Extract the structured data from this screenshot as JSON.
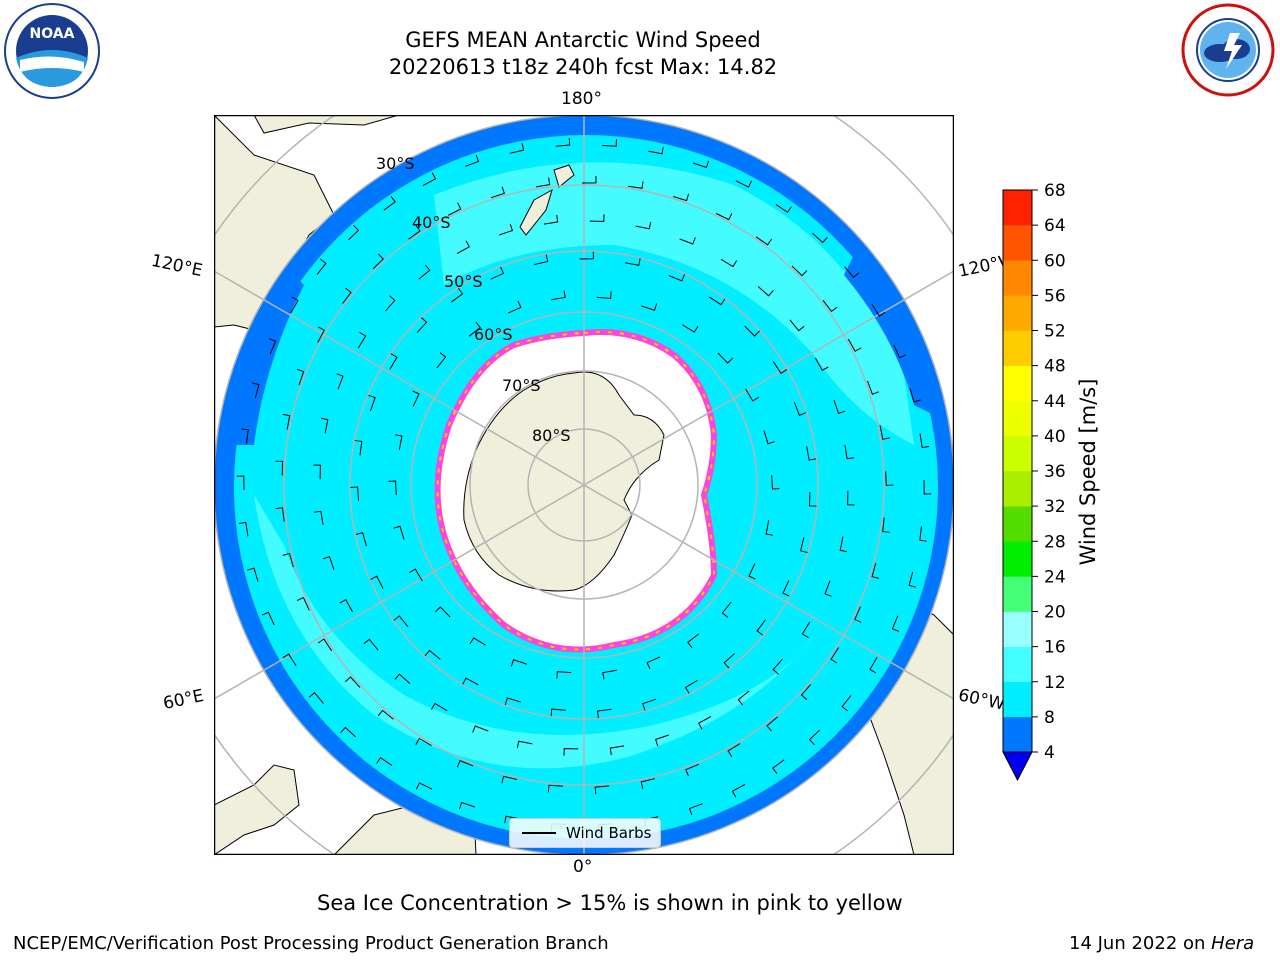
{
  "title": {
    "line1": "GEFS MEAN Antarctic Wind Speed",
    "line2": "20220613 t18z 240h fcst   Max: 14.82"
  },
  "map_labels": {
    "lon_top": "180°",
    "lon_bottom": "0°",
    "lon_upper_left": "120°E",
    "lon_upper_right": "120°W",
    "lon_lower_left": "60°E",
    "lon_lower_right": "60°W",
    "lat_30": "30°S",
    "lat_40": "40°S",
    "lat_50": "50°S",
    "lat_60": "60°S",
    "lat_70": "70°S",
    "lat_80": "80°S"
  },
  "legend": {
    "label": "Wind Barbs"
  },
  "colorbar": {
    "label": "Wind Speed [m/s]",
    "ticks": [
      "4",
      "8",
      "12",
      "16",
      "20",
      "24",
      "28",
      "32",
      "36",
      "40",
      "44",
      "48",
      "52",
      "56",
      "60",
      "64",
      "68"
    ],
    "colors": [
      "#0077ff",
      "#00eeff",
      "#44ffff",
      "#99ffff",
      "#44ff77",
      "#00ee00",
      "#55dd00",
      "#aaee00",
      "#ccff00",
      "#eeff00",
      "#ffff00",
      "#ffcc00",
      "#ffaa00",
      "#ff8800",
      "#ff5500",
      "#ff2200"
    ],
    "under_color": "#0000ee"
  },
  "colors": {
    "land": "#efefdb",
    "ice_interior": "#ffffff",
    "ocean_low": "#0077ff",
    "ocean_mid": "#00eeff",
    "ocean_high": "#55ffff",
    "sea_ice_edge": "#ff44dd",
    "grid": "#b4b4b4"
  },
  "note": "Sea Ice Concentration > 15% is shown in pink to yellow",
  "footer": {
    "left": "NCEP/EMC/Verification Post Processing Product Generation Branch",
    "right_date": "14 Jun 2022 on ",
    "right_host": "Hera"
  },
  "logos": {
    "noaa": "NOAA",
    "nws": "NATIONAL WEATHER SERVICE"
  }
}
